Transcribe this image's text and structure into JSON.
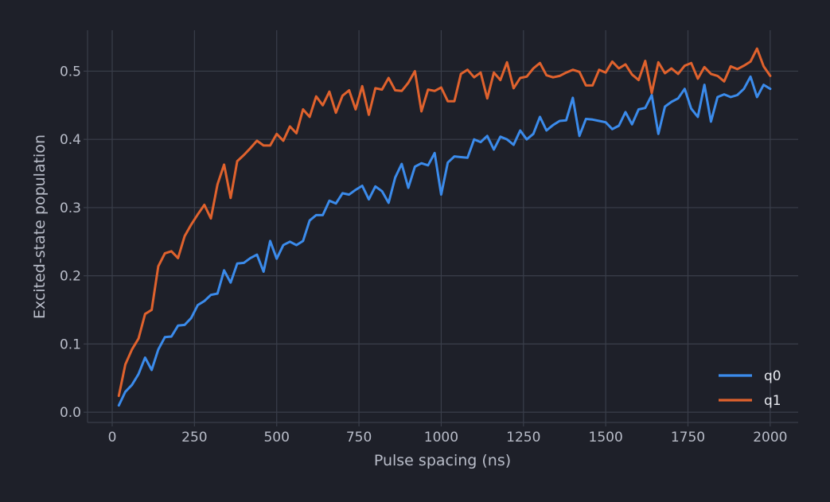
{
  "colors": {
    "background": "#1e2029",
    "grid": "#3a3e4a",
    "text": "#b8bcc8",
    "q0": "#3b8beb",
    "q1": "#e0622d"
  },
  "chart_data": {
    "type": "line",
    "xlabel": "Pulse spacing (ns)",
    "ylabel": "Excited-state population",
    "xlim": [
      -75,
      2085
    ],
    "ylim": [
      -0.015,
      0.56
    ],
    "xticks": [
      0,
      250,
      500,
      750,
      1000,
      1250,
      1500,
      1750,
      2000
    ],
    "xtick_labels": [
      "0",
      "250",
      "500",
      "750",
      "1000",
      "1250",
      "1500",
      "1750",
      "2000"
    ],
    "yticks": [
      0.0,
      0.1,
      0.2,
      0.3,
      0.4,
      0.5
    ],
    "ytick_labels": [
      "0.0",
      "0.1",
      "0.2",
      "0.3",
      "0.4",
      "0.5"
    ],
    "grid": true,
    "legend_position": "lower-right",
    "x": [
      20,
      40,
      60,
      80,
      100,
      120,
      140,
      160,
      180,
      200,
      220,
      240,
      260,
      280,
      300,
      320,
      340,
      360,
      380,
      400,
      420,
      440,
      460,
      480,
      500,
      520,
      540,
      560,
      580,
      600,
      620,
      640,
      660,
      680,
      700,
      720,
      740,
      760,
      780,
      800,
      820,
      840,
      860,
      880,
      900,
      920,
      940,
      960,
      980,
      1000,
      1020,
      1040,
      1060,
      1080,
      1100,
      1120,
      1140,
      1160,
      1180,
      1200,
      1220,
      1240,
      1260,
      1280,
      1300,
      1320,
      1340,
      1360,
      1380,
      1400,
      1420,
      1440,
      1460,
      1480,
      1500,
      1520,
      1540,
      1560,
      1580,
      1600,
      1620,
      1640,
      1660,
      1680,
      1700,
      1720,
      1740,
      1760,
      1780,
      1800,
      1820,
      1840,
      1860,
      1880,
      1900,
      1920,
      1940,
      1960,
      1980,
      2000
    ],
    "series": [
      {
        "name": "q0",
        "color": "#3b8beb",
        "values": [
          0.01,
          0.03,
          0.04,
          0.056,
          0.08,
          0.062,
          0.092,
          0.11,
          0.111,
          0.127,
          0.128,
          0.138,
          0.157,
          0.163,
          0.172,
          0.174,
          0.208,
          0.19,
          0.218,
          0.219,
          0.226,
          0.231,
          0.206,
          0.251,
          0.225,
          0.245,
          0.25,
          0.245,
          0.251,
          0.281,
          0.289,
          0.289,
          0.31,
          0.306,
          0.321,
          0.319,
          0.326,
          0.332,
          0.312,
          0.331,
          0.324,
          0.307,
          0.344,
          0.364,
          0.329,
          0.36,
          0.365,
          0.362,
          0.38,
          0.319,
          0.366,
          0.375,
          0.374,
          0.373,
          0.4,
          0.396,
          0.405,
          0.385,
          0.404,
          0.4,
          0.392,
          0.413,
          0.4,
          0.408,
          0.433,
          0.413,
          0.421,
          0.427,
          0.428,
          0.461,
          0.405,
          0.43,
          0.429,
          0.427,
          0.425,
          0.415,
          0.42,
          0.44,
          0.422,
          0.444,
          0.446,
          0.465,
          0.408,
          0.448,
          0.455,
          0.46,
          0.474,
          0.445,
          0.433,
          0.48,
          0.426,
          0.462,
          0.466,
          0.462,
          0.465,
          0.474,
          0.492,
          0.462,
          0.48,
          0.474
        ]
      },
      {
        "name": "q1",
        "color": "#e0622d",
        "values": [
          0.024,
          0.07,
          0.092,
          0.108,
          0.144,
          0.15,
          0.214,
          0.233,
          0.236,
          0.226,
          0.258,
          0.275,
          0.29,
          0.304,
          0.284,
          0.334,
          0.363,
          0.314,
          0.368,
          0.377,
          0.387,
          0.398,
          0.391,
          0.391,
          0.408,
          0.398,
          0.419,
          0.409,
          0.444,
          0.433,
          0.463,
          0.45,
          0.47,
          0.439,
          0.464,
          0.472,
          0.444,
          0.478,
          0.436,
          0.475,
          0.473,
          0.49,
          0.472,
          0.471,
          0.483,
          0.5,
          0.441,
          0.473,
          0.471,
          0.476,
          0.456,
          0.456,
          0.496,
          0.502,
          0.491,
          0.498,
          0.46,
          0.498,
          0.487,
          0.513,
          0.475,
          0.49,
          0.492,
          0.504,
          0.512,
          0.494,
          0.491,
          0.493,
          0.498,
          0.502,
          0.499,
          0.479,
          0.479,
          0.502,
          0.498,
          0.514,
          0.504,
          0.51,
          0.495,
          0.487,
          0.515,
          0.468,
          0.513,
          0.497,
          0.504,
          0.496,
          0.508,
          0.512,
          0.489,
          0.506,
          0.496,
          0.493,
          0.485,
          0.507,
          0.503,
          0.508,
          0.514,
          0.533,
          0.507,
          0.493
        ]
      }
    ]
  }
}
